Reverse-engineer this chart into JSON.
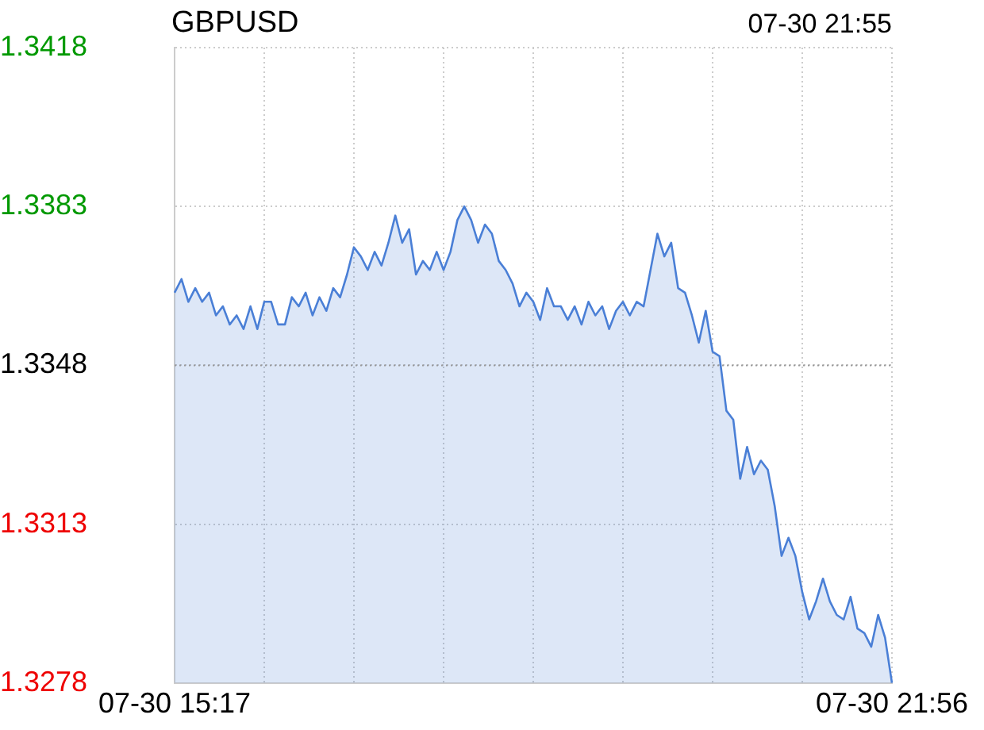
{
  "chart_data": {
    "type": "area",
    "title": "GBPUSD",
    "annotations": [
      "07-30 21:55"
    ],
    "categories": [
      "07-30 15:17",
      null,
      null,
      null,
      null,
      null,
      null,
      null,
      null,
      null,
      null,
      null,
      null,
      null,
      null,
      null,
      null,
      null,
      null,
      null,
      null,
      null,
      null,
      null,
      null,
      null,
      null,
      null,
      null,
      null,
      null,
      null,
      null,
      null,
      null,
      null,
      null,
      null,
      null,
      null,
      null,
      null,
      null,
      null,
      null,
      null,
      null,
      null,
      null,
      null,
      null,
      null,
      null,
      null,
      null,
      null,
      null,
      null,
      null,
      null,
      null,
      null,
      null,
      null,
      null,
      null,
      null,
      null,
      null,
      null,
      null,
      null,
      null,
      null,
      null,
      null,
      null,
      null,
      null,
      null,
      null,
      null,
      null,
      null,
      null,
      null,
      null,
      null,
      null,
      null,
      null,
      null,
      null,
      null,
      null,
      null,
      null,
      null,
      null,
      null,
      null,
      null,
      null,
      null,
      "07-30 21:56"
    ],
    "series": [
      {
        "color": "#4a7fd6",
        "values": [
          1.3364,
          1.3367,
          1.3362,
          1.3365,
          1.3362,
          1.3364,
          1.3359,
          1.3361,
          1.3357,
          1.3359,
          1.3356,
          1.3361,
          1.3356,
          1.3362,
          1.3362,
          1.3357,
          1.3357,
          1.3363,
          1.3361,
          1.3364,
          1.3359,
          1.3363,
          1.336,
          1.3365,
          1.3363,
          1.3368,
          1.3374,
          1.3372,
          1.3369,
          1.3373,
          1.337,
          1.3375,
          1.3381,
          1.3375,
          1.3378,
          1.3368,
          1.3371,
          1.3369,
          1.3373,
          1.3369,
          1.3373,
          1.338,
          1.3383,
          1.338,
          1.3375,
          1.3379,
          1.3377,
          1.3371,
          1.3369,
          1.3366,
          1.3361,
          1.3364,
          1.3362,
          1.3358,
          1.3365,
          1.3361,
          1.3361,
          1.3358,
          1.3361,
          1.3357,
          1.3362,
          1.3359,
          1.3361,
          1.3356,
          1.336,
          1.3362,
          1.3359,
          1.3362,
          1.3361,
          1.3369,
          1.3377,
          1.3372,
          1.3375,
          1.3365,
          1.3364,
          1.3359,
          1.3353,
          1.336,
          1.3351,
          1.335,
          1.3338,
          1.3336,
          1.3323,
          1.333,
          1.3324,
          1.3327,
          1.3325,
          1.3317,
          1.3306,
          1.331,
          1.3306,
          1.3298,
          1.3292,
          1.3296,
          1.3301,
          1.3296,
          1.3293,
          1.3292,
          1.3297,
          1.329,
          1.3289,
          1.3286,
          1.3293,
          1.3288,
          1.3278
        ]
      }
    ],
    "ylim": [
      1.3278,
      1.3418
    ],
    "yticks": [
      1.3278,
      1.3313,
      1.3348,
      1.3383,
      1.3418
    ],
    "ref_lines": [
      {
        "axis": "y",
        "value": 1.3348,
        "color": "#999999",
        "line_style": "dotted"
      }
    ],
    "grid": true,
    "legend": false
  }
}
